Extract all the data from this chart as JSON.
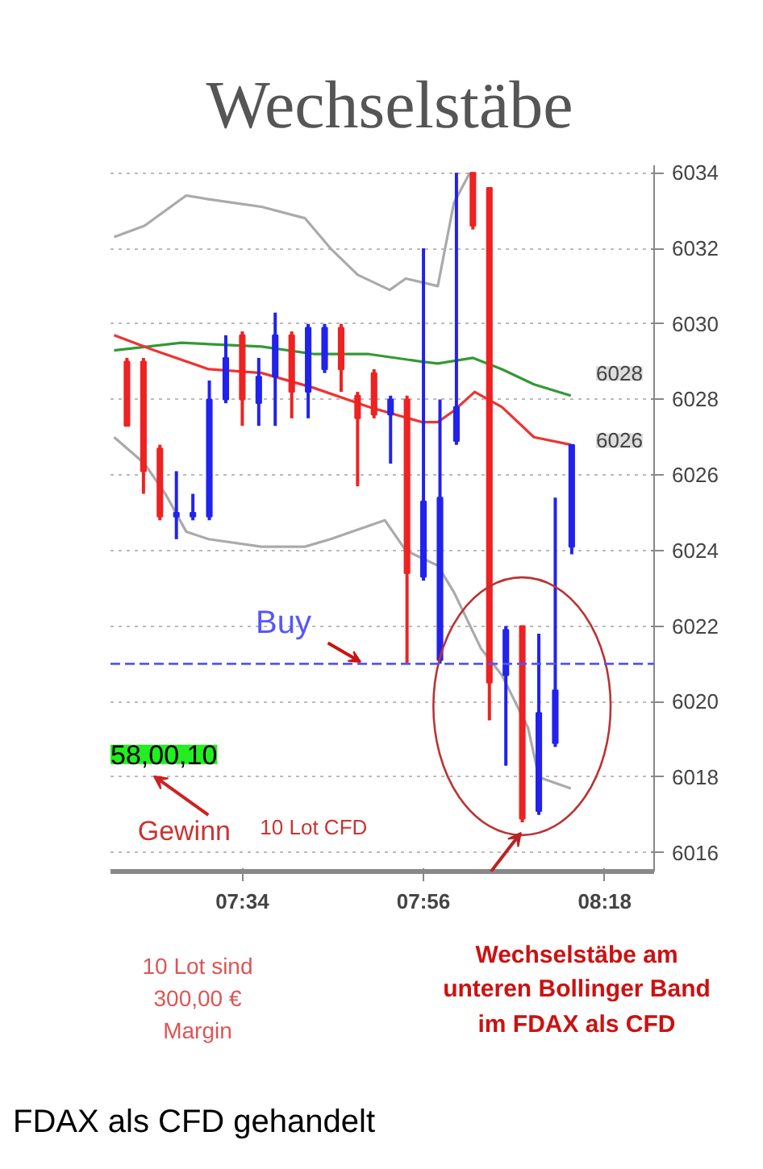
{
  "chart_data": {
    "type": "candlestick",
    "title": "Wechselstäbe",
    "x": [
      7.3333,
      7.3667,
      7.4,
      7.4333,
      7.4667,
      7.5,
      7.5333,
      7.5667,
      7.6,
      7.6333,
      7.6667,
      7.7,
      7.7333,
      7.7667,
      7.8,
      7.8333,
      7.8667,
      7.9,
      7.9333,
      7.9667,
      8.0,
      8.0333,
      8.0667,
      8.1,
      8.1333,
      8.1667,
      8.2,
      8.2333
    ],
    "ohlc": [
      [
        6029.0,
        6029.1,
        6027.3,
        6027.3
      ],
      [
        6029.0,
        6029.1,
        6025.5,
        6026.1
      ],
      [
        6026.7,
        6026.8,
        6024.8,
        6024.9
      ],
      [
        6024.9,
        6026.1,
        6024.3,
        6025.0
      ],
      [
        6024.9,
        6025.5,
        6024.8,
        6025.0
      ],
      [
        6024.9,
        6028.5,
        6024.8,
        6028.0
      ],
      [
        6028.0,
        6029.7,
        6027.9,
        6029.1
      ],
      [
        6029.7,
        6029.8,
        6027.3,
        6028.0
      ],
      [
        6027.9,
        6029.1,
        6027.3,
        6028.6
      ],
      [
        6028.6,
        6030.3,
        6027.3,
        6029.7
      ],
      [
        6029.7,
        6029.8,
        6027.5,
        6028.2
      ],
      [
        6028.2,
        6030.0,
        6027.5,
        6029.9
      ],
      [
        6028.8,
        6030.0,
        6028.7,
        6029.9
      ],
      [
        6029.9,
        6030.0,
        6028.2,
        6028.8
      ],
      [
        6028.1,
        6028.2,
        6025.7,
        6027.5
      ],
      [
        6028.7,
        6028.8,
        6027.5,
        6027.6
      ],
      [
        6027.6,
        6028.1,
        6026.3,
        6028.0
      ],
      [
        6028.0,
        6028.1,
        6021.0,
        6023.4
      ],
      [
        6023.3,
        6032.0,
        6023.2,
        6025.3
      ],
      [
        6021.1,
        6028.0,
        6021.0,
        6025.4
      ],
      [
        6026.9,
        6034.0,
        6026.8,
        6027.8
      ],
      [
        6034.0,
        6034.0,
        6032.5,
        6032.6
      ],
      [
        6033.6,
        6033.6,
        6019.5,
        6020.5
      ],
      [
        6020.7,
        6022.0,
        6018.3,
        6021.9
      ],
      [
        6022.0,
        6022.0,
        6016.8,
        6016.9
      ],
      [
        6017.1,
        6021.8,
        6017.0,
        6019.7
      ],
      [
        6018.9,
        6025.4,
        6018.8,
        6020.3
      ],
      [
        6024.1,
        6026.8,
        6023.9,
        6026.8
      ]
    ],
    "colors": [
      "#ee2222",
      "#ee2222",
      "#ee2222",
      "#2222ee",
      "#2222ee",
      "#2222ee",
      "#2222ee",
      "#ee2222",
      "#2222ee",
      "#2222ee",
      "#ee2222",
      "#2222ee",
      "#2222ee",
      "#ee2222",
      "#ee2222",
      "#ee2222",
      "#2222ee",
      "#ee2222",
      "#2222ee",
      "#2222ee",
      "#2222ee",
      "#ee2222",
      "#ee2222",
      "#2222ee",
      "#ee2222",
      "#2222ee",
      "#2222ee",
      "#2222ee"
    ],
    "series": [
      {
        "type": "line",
        "color": "#339933",
        "x": [
          7.3073,
          7.4435,
          7.6056,
          7.7126,
          7.8228,
          7.9299,
          7.9623,
          8.0336,
          8.092,
          8.1568,
          8.2314
        ],
        "values": [
          6029.3,
          6029.5,
          6029.4,
          6029.2,
          6029.2,
          6029.0,
          6028.95,
          6029.1,
          6028.8,
          6028.4,
          6028.1
        ]
      },
      {
        "type": "line",
        "color": "#ee3333",
        "x": [
          7.3073,
          7.3884,
          7.4986,
          7.6056,
          7.7126,
          7.8228,
          7.9299,
          7.9623,
          7.9948,
          8.0369,
          8.092,
          8.1568,
          8.2314
        ],
        "values": [
          6029.7,
          6029.3,
          6028.8,
          6028.7,
          6028.3,
          6027.8,
          6027.4,
          6027.4,
          6027.7,
          6028.2,
          6027.8,
          6027.0,
          6026.8
        ]
      },
      {
        "type": "line",
        "color": "#aaaaaa",
        "x": [
          7.3073,
          7.3689,
          7.4532,
          7.4986,
          7.6056,
          7.6932,
          7.7451,
          7.8002,
          7.865,
          7.8975,
          7.9623,
          7.9948,
          8.0272
        ],
        "values": [
          6032.3,
          6032.6,
          6033.4,
          6033.3,
          6033.1,
          6032.8,
          6032.0,
          6031.3,
          6030.9,
          6031.2,
          6031.0,
          6033.2,
          6034.0
        ]
      },
      {
        "type": "line",
        "color": "#aaaaaa",
        "x": [
          7.3073,
          7.3689,
          7.411,
          7.4532,
          7.4986,
          7.6056,
          7.6932,
          7.7451,
          7.8553,
          7.8975,
          7.9299,
          7.9623,
          7.9948,
          8.0499,
          8.092,
          8.145,
          8.1667,
          8.2314
        ],
        "values": [
          6027.0,
          6026.3,
          6025.5,
          6024.5,
          6024.3,
          6024.1,
          6024.1,
          6024.3,
          6024.8,
          6024.0,
          6023.8,
          6023.6,
          6022.9,
          6021.4,
          6020.7,
          6019.3,
          6018.0,
          6017.7
        ]
      }
    ],
    "xlim": [
      7.3,
      8.4
    ],
    "ylim": [
      6015.5,
      6034.2
    ],
    "xticks": [
      {
        "value": 7.5667,
        "label": "07:34"
      },
      {
        "value": 7.9333,
        "label": "07:56"
      },
      {
        "value": 8.3,
        "label": "08:18"
      }
    ],
    "yticks": [
      6016,
      6018,
      6020,
      6022,
      6024,
      6026,
      6028,
      6030,
      6032,
      6034
    ],
    "grid": "y",
    "ref_lines": [
      {
        "axis": "y",
        "value": 6021,
        "label": "Buy",
        "color": "#5555ff",
        "line_style": "dashed"
      }
    ],
    "annotations": [
      "58,00,10",
      "Gewinn",
      "10 Lot CFD",
      "10 Lot sind 300,00 € Margin",
      "Wechselstäbe am unteren Bollinger Band im FDAX als CFD",
      "FDAX als CFD gehandelt",
      "6028",
      "6026"
    ]
  }
}
